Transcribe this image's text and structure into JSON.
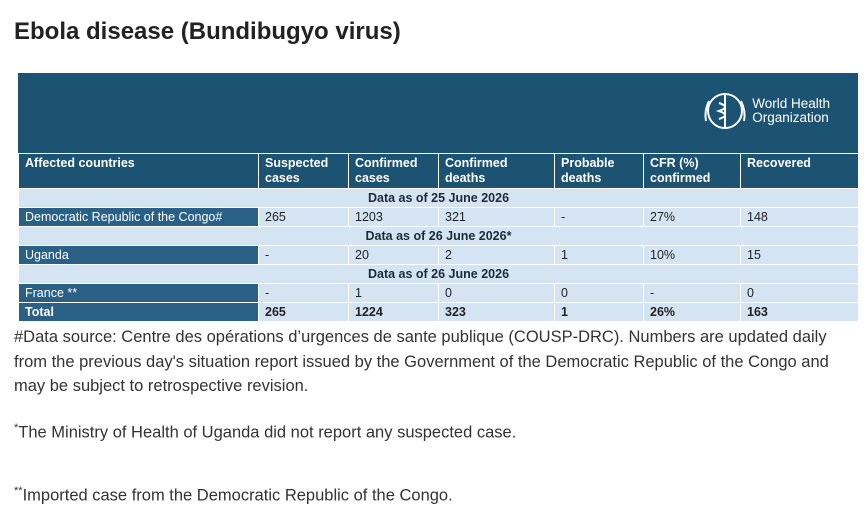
{
  "title": "Ebola disease (Bundibugyo virus)",
  "logo": {
    "line1": "World Health",
    "line2": "Organization"
  },
  "table": {
    "columns": [
      "Affected countries",
      "Suspected cases",
      "Confirmed cases",
      "Confirmed deaths",
      "Probable deaths",
      "CFR (%) confirmed",
      "Recovered"
    ],
    "sections": [
      {
        "date": "Data as of 25 June 2026",
        "rows": [
          [
            "Democratic Republic of the Congo#",
            "265",
            "1203",
            "321",
            "-",
            "27%",
            "148"
          ]
        ]
      },
      {
        "date": "Data as of 26 June 2026*",
        "rows": [
          [
            "Uganda",
            "-",
            "20",
            "2",
            "1",
            "10%",
            "15"
          ]
        ]
      },
      {
        "date": "Data as of 26 June 2026",
        "rows": [
          [
            "France **",
            "-",
            "1",
            "0",
            "0",
            "-",
            "0"
          ]
        ]
      }
    ],
    "total": [
      "Total",
      "265",
      "1224",
      "323",
      "1",
      "26%",
      "163"
    ]
  },
  "footnotes": [
    {
      "text": "#Data source: Centre des opérations d’urgences de sante publique (COUSP-DRC). Numbers are updated daily from the previous day's situation report issued by the Government of the Democratic Republic of the Congo and may be subject to retrospective revision."
    },
    {
      "marker": "*",
      "text": "The Ministry of Health of Uganda did not report any suspected case."
    },
    {
      "marker": "**",
      "text": "Imported case from the Democratic Republic of the Congo."
    }
  ]
}
